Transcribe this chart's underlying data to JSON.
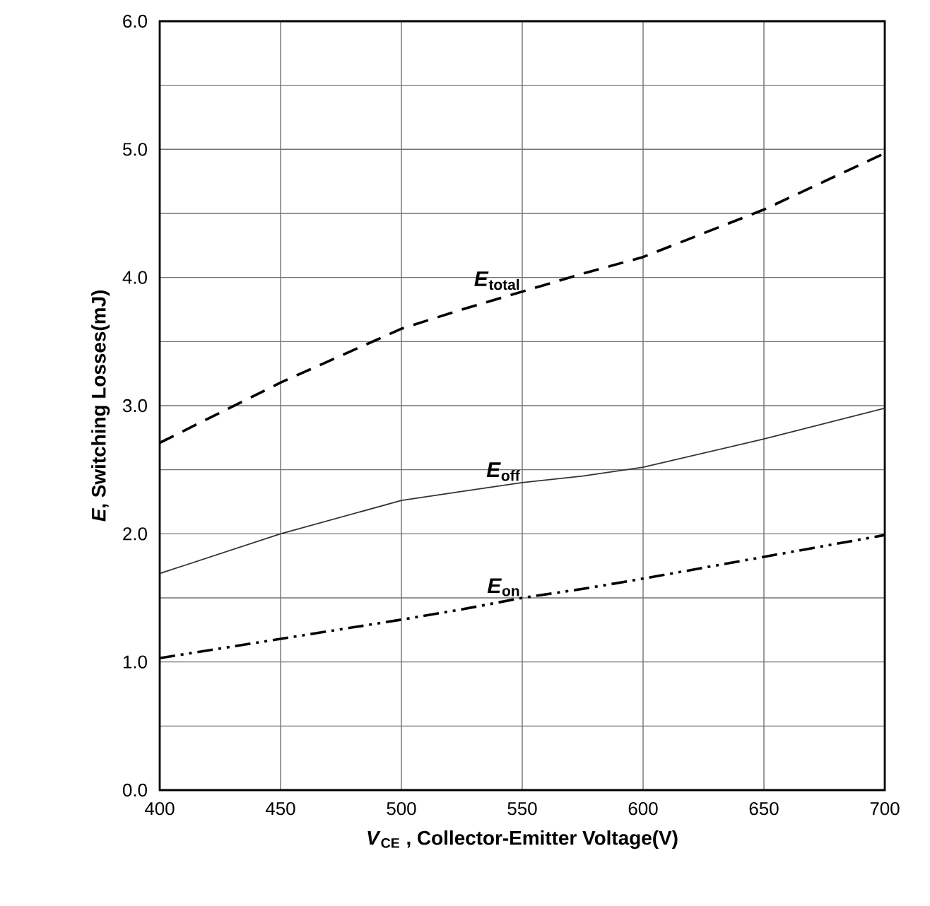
{
  "chart_data": {
    "type": "line",
    "xlabel": "*V*$_{CE}$ , Collector-Emitter Voltage(V)",
    "ylabel": "*E*, Switching Losses(mJ)",
    "xlim": [
      400,
      700
    ],
    "ylim": [
      0,
      6
    ],
    "xticks": [
      400,
      450,
      500,
      550,
      600,
      650,
      700
    ],
    "yticks": [
      {
        "value": 0,
        "label": "0.0"
      },
      {
        "value": 0.5,
        "label": null
      },
      {
        "value": 1,
        "label": "1.0"
      },
      {
        "value": 1.5,
        "label": null
      },
      {
        "value": 2,
        "label": "2.0"
      },
      {
        "value": 2.5,
        "label": null
      },
      {
        "value": 3,
        "label": "3.0"
      },
      {
        "value": 3.5,
        "label": null
      },
      {
        "value": 4,
        "label": "4.0"
      },
      {
        "value": 4.5,
        "label": null
      },
      {
        "value": 5,
        "label": "5.0"
      },
      {
        "value": 5.5,
        "label": null
      },
      {
        "value": 6,
        "label": "6.0"
      }
    ],
    "grid": true,
    "x": [
      400,
      450,
      500,
      525,
      550,
      575,
      600,
      650,
      700
    ],
    "series": [
      {
        "name": "*E*$_{total}$",
        "color": "#000000",
        "line_style": "dashed",
        "values": [
          2.71,
          3.18,
          3.6,
          3.75,
          3.89,
          4.03,
          4.16,
          4.53,
          4.97
        ]
      },
      {
        "name": "*E*$_{off}$",
        "color": "#333333",
        "line_style": "solid",
        "values": [
          1.69,
          2.0,
          2.26,
          2.33,
          2.4,
          2.45,
          2.52,
          2.74,
          2.98
        ]
      },
      {
        "name": "*E*$_{on}$",
        "color": "#000000",
        "line_style": "dashdotdot",
        "values": [
          1.03,
          1.18,
          1.33,
          1.41,
          1.5,
          1.57,
          1.65,
          1.82,
          1.99
        ]
      }
    ]
  }
}
